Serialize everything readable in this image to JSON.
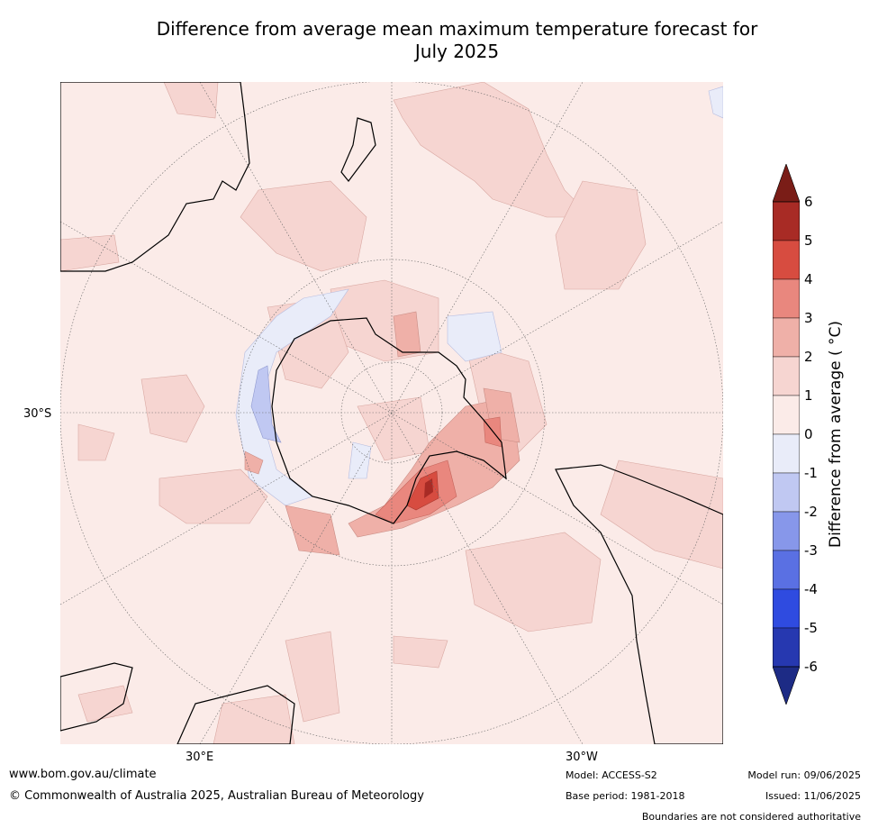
{
  "title_line1": "Difference from average mean maximum temperature forecast for",
  "title_line2": "July 2025",
  "axis_labels": {
    "lat_30s": "30°S",
    "lon_30e": "30°E",
    "lon_30w": "30°W"
  },
  "colorbar": {
    "title": "Difference from average ( °C)",
    "ticks": [
      "6",
      "5",
      "4",
      "3",
      "2",
      "1",
      "0",
      "-1",
      "-2",
      "-3",
      "-4",
      "-5",
      "-6"
    ],
    "colors_top_to_bottom": [
      "#a82b25",
      "#d74c40",
      "#e9877e",
      "#efb0a8",
      "#f6d5d1",
      "#fbebe8",
      "#e9ecf9",
      "#c0c8f2",
      "#8797ea",
      "#5a70e3",
      "#2f4be0",
      "#2638b0"
    ],
    "over_color": "#7a1d17",
    "under_color": "#1d2b85"
  },
  "map_colors": {
    "ocean": "#fbebe8",
    "warm1": "#f6d5d1",
    "warm2": "#efb0a8",
    "warm3": "#e9877e",
    "warm4": "#d74c40",
    "warm5": "#a82b25",
    "cool1": "#e9ecf9",
    "cool2": "#c0c8f2"
  },
  "footer": {
    "url": "www.bom.gov.au/climate",
    "copyright": "© Commonwealth of Australia 2025, Australian Bureau of Meteorology",
    "model": "Model: ACCESS-S2",
    "base_period": "Base period: 1981-2018",
    "model_run": "Model run: 09/06/2025",
    "issued": "Issued: 11/06/2025",
    "disclaimer": "Boundaries are not considered authoritative"
  }
}
